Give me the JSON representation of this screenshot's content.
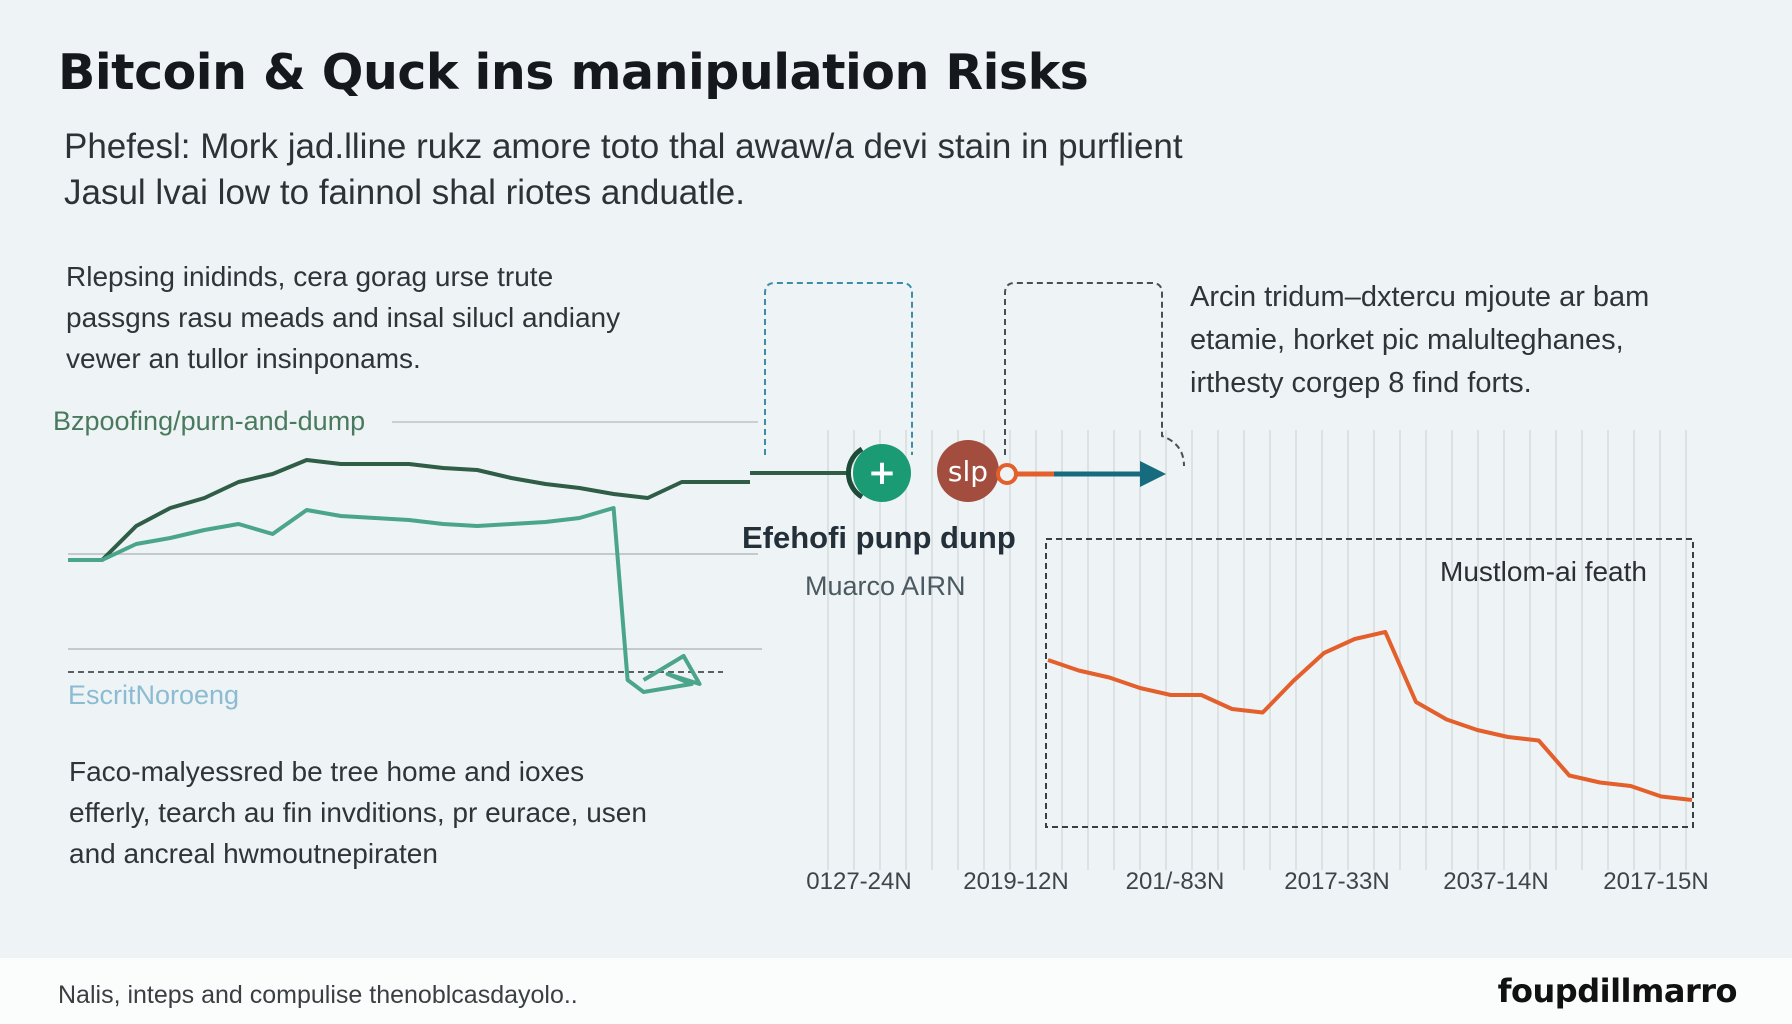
{
  "title": "Bitcoin & Quck ins manipulation Risks",
  "subtitle": [
    "Phefesl: Mork jad.lline rukz amore toto thal awaw/a devi stain in purflient",
    "Jasul lvai low to fainnol shal riotes anduatle."
  ],
  "left_top_paragraph": [
    "Rlepsing inidinds, cera gorag urse trute",
    "passgns rasu meads and insal silucl andiany",
    "vewer an tullor insinponams."
  ],
  "left_bottom_paragraph": [
    "Faco-malyessred be tree home and ioxes",
    "efferly, tearch au fin invditions, pr eurace, usen",
    "and ancreal hwmoutnepiraten"
  ],
  "right_paragraph": [
    "Arcin tridum–dxtercu mjoute ar bam",
    "etamie, horket pic malulteghanes,",
    "irthesty corgep 8 find forts."
  ],
  "labels": {
    "spoofing": "Bzpoofing/purn-and-dump",
    "escrit": "EscritNoroeng",
    "pump_title": "Efehofi punp dunp",
    "pump_sub": "Muarco AIRN",
    "plus_icon": "+",
    "slp_icon": "slp"
  },
  "colors": {
    "dark_green": "#2f5d46",
    "teal": "#4aa58b",
    "orange": "#e35f2c",
    "plus_badge": "#1a9b74",
    "slp_badge": "#a34d3e",
    "arrow": "#176b7e"
  },
  "footer": {
    "note": "Nalis, inteps and compulise thenoblcasdayolo..",
    "brand": "foupdillmarro"
  },
  "chart_data": [
    {
      "type": "line",
      "series": [
        {
          "name": "Bzpoofing/purn-and-dump",
          "color": "#2f5d46",
          "values": [
            40,
            40,
            57,
            66,
            71,
            79,
            83,
            90,
            88,
            88,
            88,
            86,
            85,
            81,
            78,
            76,
            73,
            71,
            79,
            79,
            79
          ]
        },
        {
          "name": "EscritNoroeng",
          "color": "#4aa58b",
          "values": [
            40,
            40,
            48,
            51,
            55,
            58,
            53,
            65,
            62,
            61,
            60,
            58,
            57,
            58,
            59,
            61,
            66,
            -20,
            -26,
            -22,
            -17
          ]
        }
      ]
    },
    {
      "type": "line",
      "title": "Mustlom-ai feath",
      "x_ticks": [
        "0127-24N",
        "2019-12N",
        "201/-83N",
        "2017-33N",
        "2037-14N",
        "2017-15N"
      ],
      "series": [
        {
          "name": "Mustlom-ai feath",
          "color": "#e35f2c",
          "values": [
            80,
            77,
            75,
            72,
            70,
            70,
            66,
            65,
            74,
            82,
            86,
            88,
            68,
            63,
            60,
            58,
            57,
            47,
            45,
            44,
            41,
            40
          ]
        }
      ]
    }
  ]
}
